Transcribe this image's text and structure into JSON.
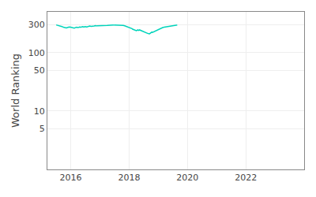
{
  "chart_data": {
    "type": "line",
    "ylabel": "World Ranking",
    "color": "#00d4bb",
    "log": "y",
    "grid": true,
    "xlim": [
      2015.2,
      2024.0
    ],
    "xticks": [
      2016,
      2018,
      2020,
      2022
    ],
    "ylim": [
      1,
      500
    ],
    "yticks": [
      300,
      100,
      50,
      10,
      5
    ],
    "x": [
      2015.5,
      2015.52,
      2015.54,
      2015.7,
      2015.75,
      2015.8,
      2015.85,
      2015.9,
      2015.95,
      2016.0,
      2016.05,
      2016.1,
      2016.12,
      2016.15,
      2016.2,
      2016.25,
      2016.3,
      2016.35,
      2016.4,
      2016.45,
      2016.5,
      2016.55,
      2016.6,
      2016.65,
      2016.7,
      2016.75,
      2016.8,
      2016.85,
      2016.9,
      2017.25,
      2017.3,
      2017.35,
      2017.4,
      2017.45,
      2017.5,
      2017.72,
      2017.75,
      2017.8,
      2017.85,
      2017.9,
      2017.95,
      2018.0,
      2018.05,
      2018.1,
      2018.12,
      2018.15,
      2018.2,
      2018.25,
      2018.3,
      2018.33,
      2018.36,
      2018.4,
      2018.43,
      2018.46,
      2018.5,
      2018.55,
      2018.58,
      2018.6,
      2018.65,
      2018.7,
      2018.72,
      2018.75,
      2018.78,
      2018.8,
      2018.85,
      2018.88,
      2018.9,
      2018.95,
      2019.0,
      2019.05,
      2019.1,
      2019.15,
      2019.2,
      2019.25,
      2019.3,
      2019.35,
      2019.4,
      2019.45,
      2019.5,
      2019.55,
      2019.6,
      2019.65
    ],
    "values": [
      298,
      296,
      300,
      280,
      272,
      268,
      265,
      270,
      275,
      272,
      268,
      265,
      262,
      268,
      272,
      268,
      275,
      272,
      278,
      275,
      280,
      276,
      280,
      285,
      282,
      287,
      285,
      290,
      287,
      292,
      295,
      298,
      295,
      298,
      296,
      297,
      295,
      292,
      288,
      282,
      278,
      272,
      265,
      258,
      252,
      248,
      242,
      238,
      245,
      240,
      245,
      240,
      235,
      230,
      228,
      222,
      218,
      215,
      212,
      210,
      215,
      220,
      225,
      222,
      228,
      232,
      238,
      245,
      252,
      258,
      262,
      268,
      272,
      275,
      280,
      285,
      288,
      292,
      295,
      297,
      295,
      298
    ]
  }
}
